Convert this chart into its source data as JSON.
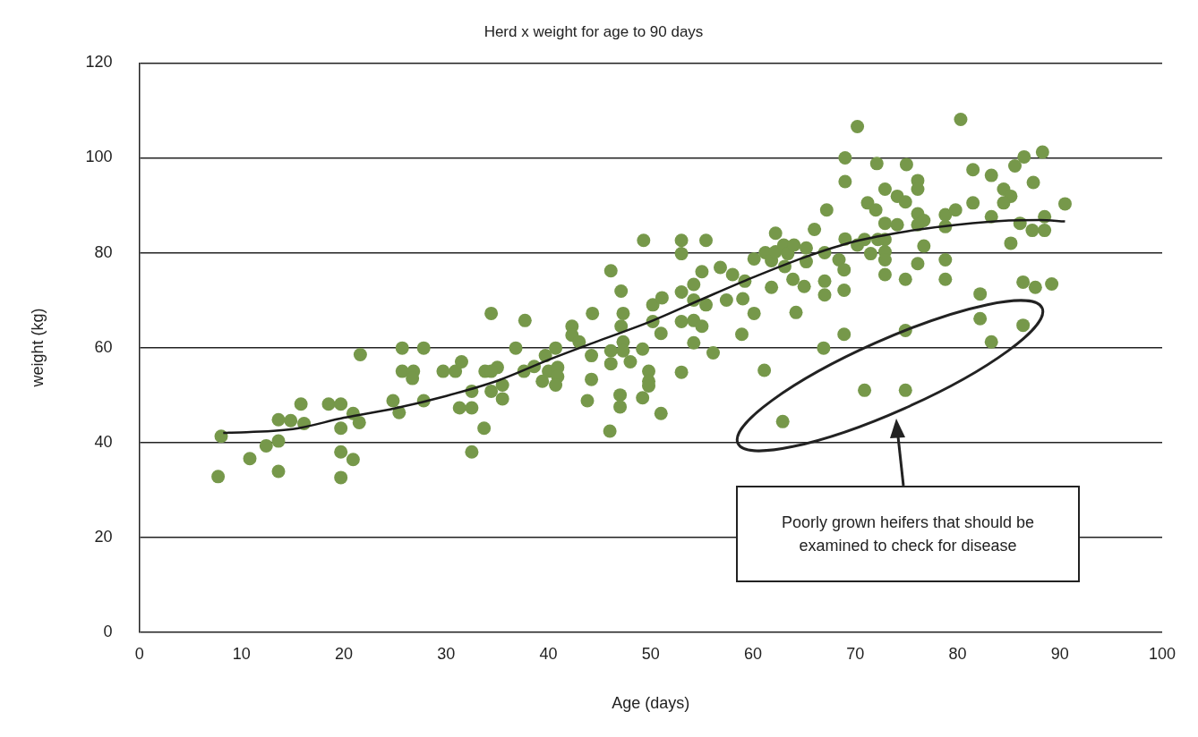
{
  "chart_data": {
    "type": "scatter",
    "title": "Herd x weight for age to 90 days",
    "xlabel": "Age (days)",
    "ylabel": "weight (kg)",
    "xlim": [
      0,
      100
    ],
    "xticks": [
      0,
      10,
      20,
      30,
      40,
      50,
      60,
      70,
      80,
      90,
      100
    ],
    "ylim": [
      0,
      120
    ],
    "yticks": [
      0,
      20,
      40,
      60,
      80,
      100,
      120
    ],
    "grid": "y",
    "legend": false,
    "marker": "circle",
    "annotations": [
      "Poorly grown heifers that should be examined to check for disease"
    ],
    "series": [
      {
        "color": "#76984a",
        "x": [
          7.7,
          8.0,
          10.8,
          12.4,
          13.6,
          13.6,
          13.6,
          14.8,
          16.1,
          15.8,
          18.5,
          19.7,
          20.9,
          21.5,
          19.7,
          19.7,
          20.9,
          19.7,
          21.6,
          24.8,
          25.4,
          25.7,
          27.8,
          25.7,
          26.8,
          26.7,
          29.7,
          30.9,
          31.5,
          27.8,
          31.3,
          32.5,
          32.5,
          32.5,
          33.7,
          33.8,
          34.4,
          37.7,
          36.8,
          35.0,
          34.4,
          35.5,
          34.4,
          35.5,
          37.6,
          38.6,
          39.4,
          39.7,
          40.7,
          40.0,
          40.9,
          40.9,
          40.7,
          42.3,
          42.3,
          43.0,
          44.3,
          44.2,
          44.2,
          43.8,
          46.1,
          47.1,
          47.3,
          47.1,
          46.1,
          47.3,
          47.3,
          46.1,
          48.0,
          47.0,
          47.0,
          46.0,
          49.2,
          49.3,
          49.8,
          49.8,
          49.8,
          49.2,
          51.0,
          50.2,
          51.1,
          50.2,
          51.0,
          53.0,
          53.0,
          53.0,
          55.4,
          53.0,
          53.0,
          54.2,
          54.2,
          55.4,
          54.2,
          55.0,
          54.2,
          56.1,
          55.0,
          56.8,
          58.0,
          59.2,
          57.4,
          59.0,
          60.1,
          60.1,
          58.9,
          61.1,
          61.2,
          61.8,
          62.2,
          62.2,
          63.0,
          63.1,
          63.4,
          64.0,
          61.8,
          63.9,
          64.2,
          65.0,
          65.2,
          65.2,
          66.0,
          67.2,
          67.0,
          67.0,
          67.0,
          66.9,
          62.9,
          68.4,
          68.9,
          68.9,
          68.9,
          69.0,
          69.0,
          70.2,
          69.0,
          70.2,
          70.9,
          71.5,
          72.1,
          71.2,
          72.0,
          72.9,
          74.1,
          74.9,
          75.0,
          76.1,
          76.1,
          72.9,
          74.1,
          72.2,
          72.9,
          72.9,
          72.9,
          72.9,
          74.9,
          76.1,
          76.7,
          76.1,
          76.7,
          76.1,
          70.9,
          74.9,
          74.9,
          78.8,
          78.8,
          78.8,
          78.8,
          80.3,
          81.5,
          83.3,
          85.6,
          86.5,
          88.3,
          87.4,
          84.5,
          85.2,
          84.5,
          81.5,
          79.8,
          83.3,
          86.1,
          88.5,
          90.5,
          87.3,
          88.5,
          85.2,
          86.4,
          87.6,
          89.2,
          82.2,
          82.2,
          86.4,
          83.3
        ],
        "values": [
          32.8,
          41.3,
          36.6,
          39.3,
          40.3,
          33.9,
          44.8,
          44.6,
          44.0,
          48.1,
          48.1,
          48.1,
          46.1,
          44.2,
          43.0,
          38.0,
          36.4,
          32.6,
          58.5,
          48.8,
          46.3,
          59.9,
          59.9,
          55.0,
          55.0,
          53.5,
          55.0,
          55.0,
          57.0,
          48.8,
          47.3,
          47.3,
          50.8,
          38.0,
          43.0,
          55.0,
          67.2,
          65.7,
          59.9,
          55.8,
          55.0,
          52.1,
          50.8,
          49.2,
          55.0,
          56.0,
          52.9,
          58.3,
          59.9,
          55.0,
          55.8,
          53.9,
          52.1,
          64.5,
          62.6,
          61.2,
          67.2,
          58.3,
          53.3,
          48.8,
          76.2,
          71.9,
          67.2,
          64.5,
          59.3,
          61.2,
          59.3,
          56.6,
          57.0,
          50.0,
          47.5,
          42.4,
          59.7,
          82.6,
          55.0,
          52.9,
          51.9,
          49.4,
          46.1,
          69.0,
          70.5,
          65.5,
          63.0,
          54.8,
          82.6,
          79.8,
          82.6,
          71.7,
          65.5,
          73.3,
          70.0,
          69.0,
          65.7,
          64.5,
          61.0,
          58.9,
          76.0,
          76.9,
          75.4,
          74.0,
          70.0,
          70.3,
          78.7,
          67.2,
          62.8,
          55.2,
          80.0,
          78.3,
          84.1,
          80.2,
          81.6,
          77.1,
          79.8,
          81.6,
          72.7,
          74.4,
          67.4,
          72.9,
          81.0,
          78.1,
          84.9,
          89.0,
          80.0,
          74.0,
          71.1,
          59.9,
          44.4,
          78.5,
          76.4,
          72.1,
          62.8,
          100.0,
          95.0,
          106.6,
          82.9,
          81.6,
          82.8,
          79.8,
          98.8,
          90.5,
          89.0,
          93.4,
          91.9,
          90.7,
          98.6,
          95.2,
          93.4,
          86.2,
          85.9,
          82.8,
          82.8,
          80.2,
          78.5,
          75.4,
          74.4,
          88.2,
          86.8,
          85.9,
          81.4,
          77.7,
          51.0,
          51.0,
          63.6,
          88.0,
          85.5,
          78.5,
          74.4,
          108.1,
          97.5,
          96.3,
          98.3,
          100.2,
          101.2,
          94.8,
          93.4,
          91.9,
          90.5,
          90.5,
          89.0,
          87.6,
          86.2,
          87.6,
          90.3,
          84.7,
          84.7,
          82.0,
          73.8,
          72.7,
          73.4,
          71.3,
          66.1,
          64.7,
          61.2
        ]
      },
      {
        "type": "line",
        "marker": "none",
        "color": "#1a1a1a",
        "x": [
          8.2,
          15,
          20,
          25,
          30,
          35,
          40,
          45,
          50,
          55,
          60,
          65,
          70,
          75,
          80,
          85,
          88,
          90.5
        ],
        "values": [
          42.0,
          42.8,
          45.2,
          47.2,
          49.8,
          53.0,
          57.4,
          61.5,
          65.5,
          70.2,
          74.8,
          79.0,
          82.4,
          84.5,
          85.9,
          86.8,
          86.9,
          86.6
        ]
      }
    ]
  }
}
